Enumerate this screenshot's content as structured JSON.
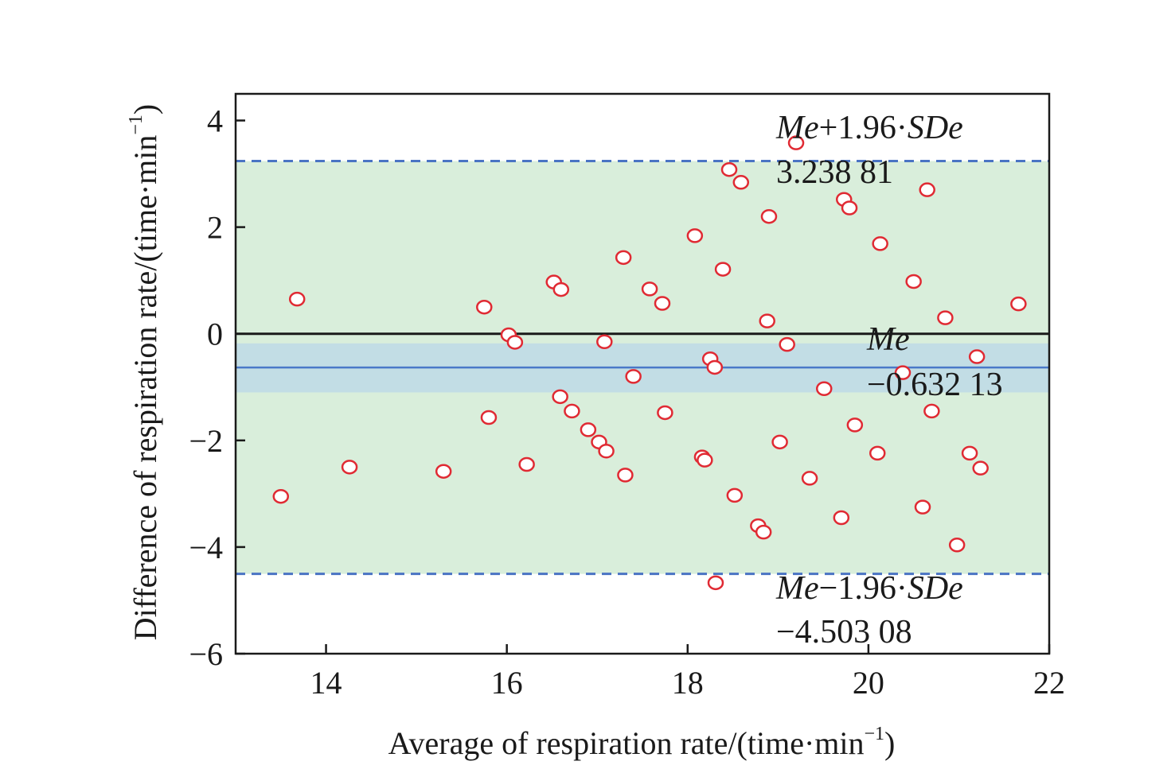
{
  "chart_data": {
    "type": "scatter",
    "xlabel_main": "Average of respiration rate/(time·min",
    "xlabel_sup": "−1",
    "xlabel_close": ")",
    "ylabel_main": "Difference of respiration rate/(time·min",
    "ylabel_sup": "−1",
    "ylabel_close": ")",
    "xlim": [
      13,
      22
    ],
    "ylim": [
      -6,
      4.5
    ],
    "xticks": [
      14,
      16,
      18,
      20,
      22
    ],
    "xtick_labels": [
      "14",
      "16",
      "18",
      "20",
      "22"
    ],
    "yticks": [
      4,
      2,
      0,
      -2,
      -4,
      -6
    ],
    "ytick_labels": [
      "4",
      "2",
      "0",
      "−2",
      "−4",
      "−6"
    ],
    "zero_line": 0,
    "mean": -0.63213,
    "mean_ci": [
      -1.1,
      -0.18
    ],
    "upper_loa": 3.23881,
    "lower_loa": -4.50308,
    "annotations": {
      "upper_label_italic1": "Me",
      "upper_label_rest1": "+1.96·",
      "upper_label_italic2": "SDe",
      "upper_value": "3.238 81",
      "mean_label": "Me",
      "mean_value": "−0.632 13",
      "lower_label_italic1": "Me",
      "lower_label_rest1": "−1.96·",
      "lower_label_italic2": "SDe",
      "lower_value": "−4.503 08"
    },
    "grid": false,
    "points": [
      [
        13.5,
        -3.05
      ],
      [
        13.68,
        0.65
      ],
      [
        14.26,
        -2.5
      ],
      [
        15.3,
        -2.58
      ],
      [
        15.75,
        0.5
      ],
      [
        15.8,
        -1.57
      ],
      [
        16.02,
        -0.02
      ],
      [
        16.09,
        -0.16
      ],
      [
        16.22,
        -2.45
      ],
      [
        16.52,
        0.97
      ],
      [
        16.6,
        0.83
      ],
      [
        16.59,
        -1.18
      ],
      [
        16.72,
        -1.45
      ],
      [
        16.9,
        -1.8
      ],
      [
        17.02,
        -2.03
      ],
      [
        17.1,
        -2.2
      ],
      [
        17.08,
        -0.15
      ],
      [
        17.29,
        1.43
      ],
      [
        17.31,
        -2.65
      ],
      [
        17.4,
        -0.8
      ],
      [
        17.58,
        0.84
      ],
      [
        17.72,
        0.57
      ],
      [
        17.75,
        -1.48
      ],
      [
        18.08,
        1.84
      ],
      [
        18.16,
        -2.31
      ],
      [
        18.19,
        -2.37
      ],
      [
        18.25,
        -0.47
      ],
      [
        18.3,
        -0.63
      ],
      [
        18.31,
        -4.67
      ],
      [
        18.39,
        1.21
      ],
      [
        18.46,
        3.08
      ],
      [
        18.52,
        -3.03
      ],
      [
        18.59,
        2.84
      ],
      [
        18.78,
        -3.6
      ],
      [
        18.84,
        -3.72
      ],
      [
        18.88,
        0.24
      ],
      [
        18.9,
        2.2
      ],
      [
        19.02,
        -2.03
      ],
      [
        19.1,
        -0.2
      ],
      [
        19.2,
        3.58
      ],
      [
        19.35,
        -2.71
      ],
      [
        19.51,
        -1.03
      ],
      [
        19.7,
        -3.45
      ],
      [
        19.73,
        2.52
      ],
      [
        19.79,
        2.36
      ],
      [
        19.85,
        -1.71
      ],
      [
        20.1,
        -2.24
      ],
      [
        20.13,
        1.69
      ],
      [
        20.38,
        -0.73
      ],
      [
        20.5,
        0.98
      ],
      [
        20.6,
        -3.25
      ],
      [
        20.65,
        2.7
      ],
      [
        20.7,
        -1.45
      ],
      [
        20.85,
        0.3
      ],
      [
        20.98,
        -3.96
      ],
      [
        21.12,
        -2.24
      ],
      [
        21.2,
        -0.43
      ],
      [
        21.24,
        -2.52
      ],
      [
        21.66,
        0.56
      ]
    ]
  },
  "colors": {
    "loa_band": "#d9eedb",
    "ci_band": "#c2dde5",
    "mean_line": "#4a78c8",
    "loa_line": "#4a74c4",
    "zero_line": "#1a1a1a",
    "marker_stroke": "#e02a33",
    "marker_fill": "#ffffff",
    "frame": "#1a1a1a"
  }
}
